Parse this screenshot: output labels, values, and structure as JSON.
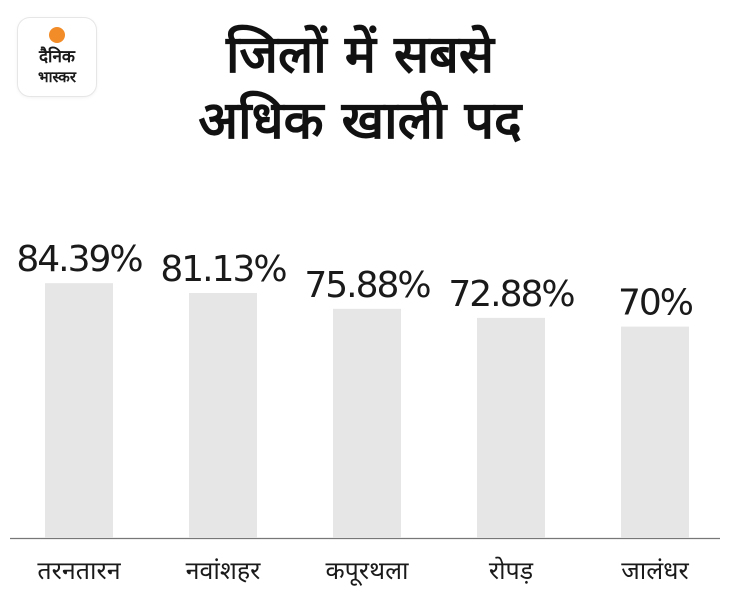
{
  "logo": {
    "line1": "दैनिक",
    "line2": "भास्कर"
  },
  "colors": {
    "bar": "#e6e6e6",
    "logo_sun": "#f28c28",
    "text": "#111111"
  },
  "chart_data": {
    "type": "bar",
    "title_lines": [
      "जिलों में सबसे",
      "अधिक खाली पद"
    ],
    "categories": [
      "तरनतारन",
      "नवांशहर",
      "कपूरथला",
      "रोपड़",
      "जालंधर"
    ],
    "values": [
      84.39,
      81.13,
      75.88,
      72.88,
      70
    ],
    "value_labels": [
      "84.39%",
      "81.13%",
      "75.88%",
      "72.88%",
      "70%"
    ],
    "unit": "%",
    "ylim": [
      0,
      100
    ],
    "grid": false,
    "legend": "none"
  }
}
